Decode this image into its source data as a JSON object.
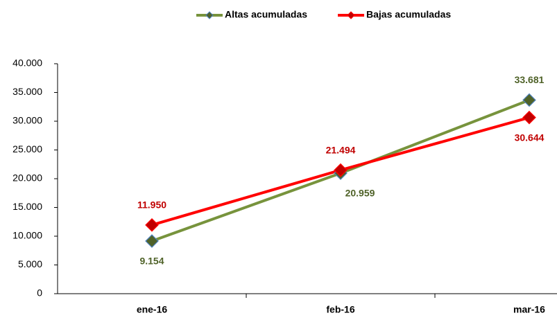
{
  "chart_data": {
    "type": "line",
    "categories": [
      "ene-16",
      "feb-16",
      "mar-16"
    ],
    "series": [
      {
        "name": "Altas acumuladas",
        "color": "#77933c",
        "marker_color": "#4f6228",
        "marker_edge": "#4f81bd",
        "label_color": "#4f6228",
        "values": [
          9154,
          20959,
          33681
        ],
        "value_labels": [
          "9.154",
          "20.959",
          "33.681"
        ]
      },
      {
        "name": "Bajas acumuladas",
        "color": "#ff0000",
        "marker_color": "#c00000",
        "marker_edge": "#ff0000",
        "label_color": "#c00000",
        "values": [
          11950,
          21494,
          30644
        ],
        "value_labels": [
          "11.950",
          "21.494",
          "30.644"
        ]
      }
    ],
    "ylim": [
      0,
      40000
    ],
    "yticks": [
      0,
      {
        "value": 5000,
        "label": "5.000"
      },
      {
        "value": 10000,
        "label": "10.000"
      },
      {
        "value": 15000,
        "label": "15.000"
      },
      {
        "value": 20000,
        "label": "20.000"
      },
      {
        "value": 25000,
        "label": "25.000"
      },
      {
        "value": 30000,
        "label": "30.000"
      },
      {
        "value": 35000,
        "label": "35.000"
      },
      {
        "value": 40000,
        "label": "40.000"
      }
    ],
    "grid": false,
    "legend": "top"
  }
}
